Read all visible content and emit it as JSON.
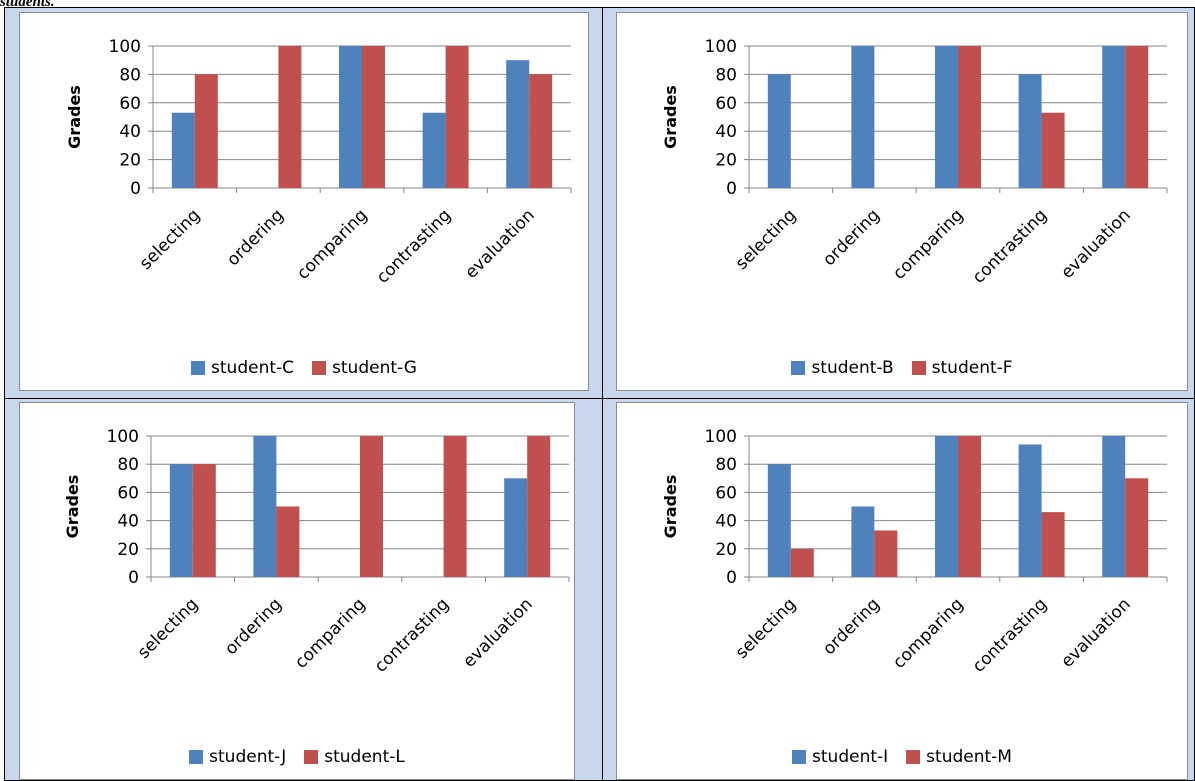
{
  "caption": "students.",
  "colors": {
    "series1": "#4f81bd",
    "series2": "#c0504d",
    "gridline": "#868686",
    "axis": "#868686"
  },
  "chart_data": [
    {
      "type": "bar",
      "ylabel": "Grades",
      "ylim": [
        0,
        100
      ],
      "yticks": [
        0,
        20,
        40,
        60,
        80,
        100
      ],
      "categories": [
        "selecting",
        "ordering",
        "comparing",
        "contrasting",
        "evaluation"
      ],
      "series": [
        {
          "name": "student-C",
          "values": [
            53,
            0,
            100,
            53,
            90
          ]
        },
        {
          "name": "student-G",
          "values": [
            80,
            100,
            100,
            100,
            80
          ]
        }
      ],
      "legend": "bottom"
    },
    {
      "type": "bar",
      "ylabel": "Grades",
      "ylim": [
        0,
        100
      ],
      "yticks": [
        0,
        20,
        40,
        60,
        80,
        100
      ],
      "categories": [
        "selecting",
        "ordering",
        "comparing",
        "contrasting",
        "evaluation"
      ],
      "series": [
        {
          "name": "student-B",
          "values": [
            80,
            100,
            100,
            80,
            100
          ]
        },
        {
          "name": "student-F",
          "values": [
            0,
            0,
            100,
            53,
            100
          ]
        }
      ],
      "legend": "bottom"
    },
    {
      "type": "bar",
      "ylabel": "Grades",
      "ylim": [
        0,
        100
      ],
      "yticks": [
        0,
        20,
        40,
        60,
        80,
        100
      ],
      "categories": [
        "selecting",
        "ordering",
        "comparing",
        "contrasting",
        "evaluation"
      ],
      "series": [
        {
          "name": "student-J",
          "values": [
            80,
            100,
            0,
            0,
            70
          ]
        },
        {
          "name": "student-L",
          "values": [
            80,
            50,
            100,
            100,
            100
          ]
        }
      ],
      "legend": "bottom"
    },
    {
      "type": "bar",
      "ylabel": "Grades",
      "ylim": [
        0,
        100
      ],
      "yticks": [
        0,
        20,
        40,
        60,
        80,
        100
      ],
      "categories": [
        "selecting",
        "ordering",
        "comparing",
        "contrasting",
        "evaluation"
      ],
      "series": [
        {
          "name": "student-I",
          "values": [
            80,
            50,
            100,
            94,
            100
          ]
        },
        {
          "name": "student-M",
          "values": [
            20,
            33,
            100,
            46,
            70
          ]
        }
      ],
      "legend": "bottom"
    }
  ]
}
